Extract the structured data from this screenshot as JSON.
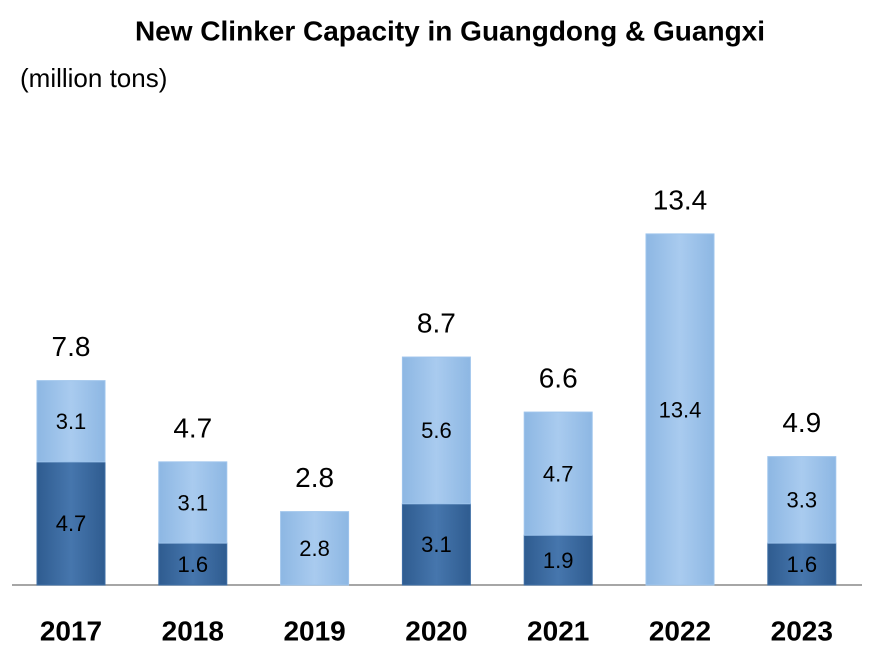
{
  "chart_data": {
    "type": "stacked-bar",
    "title": "New Clinker Capacity in Guangdong & Guangxi",
    "subtitle": "(million tons)",
    "categories": [
      "2017",
      "2018",
      "2019",
      "2020",
      "2021",
      "2022",
      "2023"
    ],
    "series": [
      {
        "color": "#3f6fa6",
        "values": [
          4.7,
          1.6,
          null,
          3.1,
          1.9,
          null,
          1.6
        ]
      },
      {
        "color": "#9ec4ec",
        "values": [
          3.1,
          3.1,
          2.8,
          5.6,
          4.7,
          13.4,
          3.3
        ]
      }
    ],
    "totals": [
      7.8,
      4.7,
      2.8,
      8.7,
      6.6,
      13.4,
      4.9
    ]
  }
}
